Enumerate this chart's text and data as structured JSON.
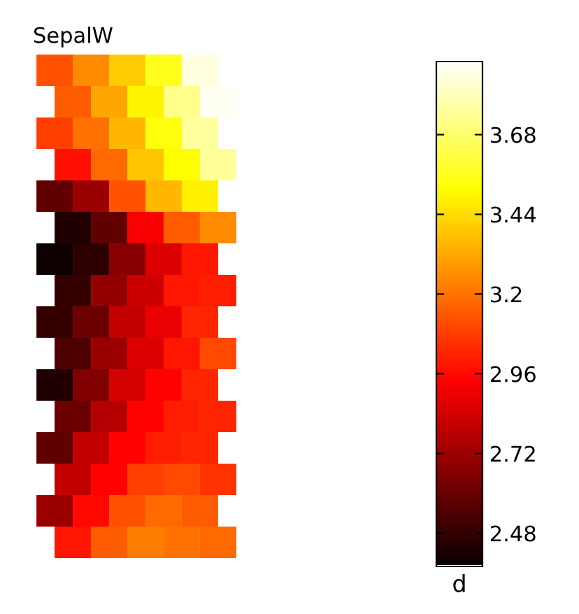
{
  "chart_data": {
    "type": "heatmap",
    "title": "SepalW",
    "clabel": "d",
    "categories": [
      null,
      null,
      null,
      null,
      null
    ],
    "y_categories": [
      null,
      null,
      null,
      null,
      null,
      null,
      null,
      null,
      null,
      null,
      null,
      null,
      null,
      null,
      null,
      null
    ],
    "cells": [
      [
        3.12,
        3.25,
        3.4,
        3.55,
        3.85
      ],
      [
        3.14,
        3.31,
        3.49,
        3.72,
        3.88
      ],
      [
        3.08,
        3.19,
        3.35,
        3.53,
        3.75
      ],
      [
        2.97,
        3.17,
        3.38,
        3.51,
        3.74
      ],
      [
        2.58,
        2.71,
        3.12,
        3.35,
        3.48
      ],
      [
        2.43,
        2.58,
        2.92,
        3.14,
        3.25
      ],
      [
        2.39,
        2.46,
        2.67,
        2.86,
        2.98
      ],
      [
        2.48,
        2.69,
        2.82,
        2.98,
        3.0
      ],
      [
        2.48,
        2.6,
        2.8,
        2.89,
        3.02
      ],
      [
        2.53,
        2.71,
        2.86,
        2.98,
        3.1
      ],
      [
        2.43,
        2.65,
        2.84,
        2.94,
        3.02
      ],
      [
        2.6,
        2.77,
        2.94,
        3.0,
        3.02
      ],
      [
        2.58,
        2.8,
        2.94,
        3.0,
        3.02
      ],
      [
        2.8,
        2.94,
        3.08,
        3.1,
        3.05
      ],
      [
        2.71,
        2.95,
        3.12,
        3.17,
        3.14
      ],
      [
        2.98,
        3.14,
        3.22,
        3.19,
        3.17
      ]
    ],
    "clim": [
      2.38,
      3.9
    ],
    "cticks": [
      2.48,
      2.72,
      2.96,
      3.2,
      3.44,
      3.68
    ]
  }
}
